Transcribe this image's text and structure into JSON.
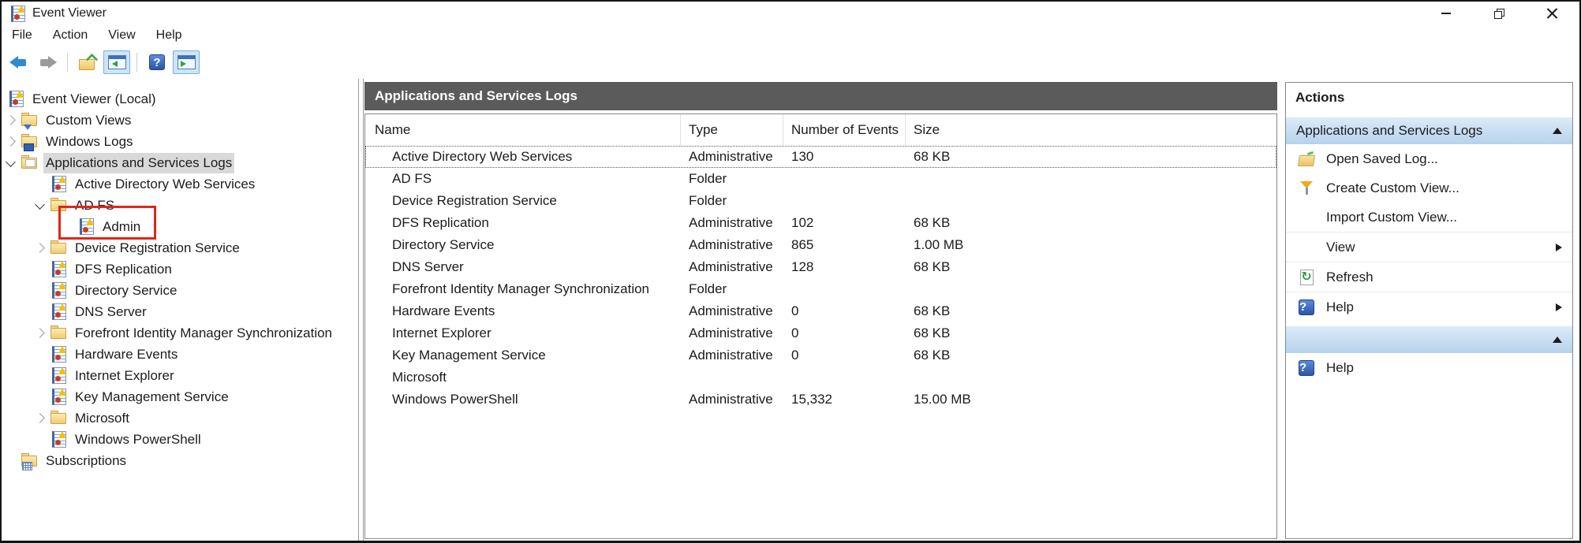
{
  "window": {
    "title": "Event Viewer"
  },
  "menu": {
    "items": [
      {
        "label": "File"
      },
      {
        "label": "Action"
      },
      {
        "label": "View"
      },
      {
        "label": "Help"
      }
    ]
  },
  "toolbar": {
    "buttons": [
      {
        "name": "back",
        "icon": "back"
      },
      {
        "name": "forward",
        "icon": "forward"
      },
      {
        "separator": true
      },
      {
        "name": "open-saved-log",
        "icon": "folder-arrow"
      },
      {
        "name": "show-hide-console-tree",
        "icon": "console-window",
        "toggled": true
      },
      {
        "separator": true
      },
      {
        "name": "help",
        "icon": "help"
      },
      {
        "name": "show-hide-action-pane",
        "icon": "action-pane-window",
        "toggled": true
      }
    ]
  },
  "tree": {
    "items": [
      {
        "label": "Event Viewer (Local)",
        "level": 0,
        "expander": null,
        "icon": "event-viewer"
      },
      {
        "label": "Custom Views",
        "level": 1,
        "expander": "collapsed",
        "icon": "folder-filter"
      },
      {
        "label": "Windows Logs",
        "level": 1,
        "expander": "collapsed",
        "icon": "folder-monitor"
      },
      {
        "label": "Applications and Services Logs",
        "level": 1,
        "expander": "expanded",
        "icon": "folder-open",
        "selected": true
      },
      {
        "label": "Active Directory Web Services",
        "level": 2,
        "expander": null,
        "icon": "log"
      },
      {
        "label": "AD FS",
        "level": 2,
        "expander": "expanded",
        "icon": "folder"
      },
      {
        "label": "Admin",
        "level": 3,
        "expander": null,
        "icon": "log",
        "annotated": true
      },
      {
        "label": "Device Registration Service",
        "level": 2,
        "expander": "collapsed",
        "icon": "folder"
      },
      {
        "label": "DFS Replication",
        "level": 2,
        "expander": null,
        "icon": "log"
      },
      {
        "label": "Directory Service",
        "level": 2,
        "expander": null,
        "icon": "log"
      },
      {
        "label": "DNS Server",
        "level": 2,
        "expander": null,
        "icon": "log"
      },
      {
        "label": "Forefront Identity Manager Synchronization",
        "level": 2,
        "expander": "collapsed",
        "icon": "folder"
      },
      {
        "label": "Hardware Events",
        "level": 2,
        "expander": null,
        "icon": "log"
      },
      {
        "label": "Internet Explorer",
        "level": 2,
        "expander": null,
        "icon": "log"
      },
      {
        "label": "Key Management Service",
        "level": 2,
        "expander": null,
        "icon": "log"
      },
      {
        "label": "Microsoft",
        "level": 2,
        "expander": "collapsed",
        "icon": "folder"
      },
      {
        "label": "Windows PowerShell",
        "level": 2,
        "expander": null,
        "icon": "log"
      },
      {
        "label": "Subscriptions",
        "level": 1,
        "expander": null,
        "icon": "folder-grid"
      }
    ]
  },
  "list": {
    "header": "Applications and Services Logs",
    "columns": [
      {
        "label": "Name"
      },
      {
        "label": "Type"
      },
      {
        "label": "Number of Events"
      },
      {
        "label": "Size"
      }
    ],
    "rows": [
      {
        "name": "Active Directory Web Services",
        "type": "Administrative",
        "events": "130",
        "size": "68 KB",
        "focused": true
      },
      {
        "name": "AD FS",
        "type": "Folder",
        "events": "",
        "size": ""
      },
      {
        "name": "Device Registration Service",
        "type": "Folder",
        "events": "",
        "size": ""
      },
      {
        "name": "DFS Replication",
        "type": "Administrative",
        "events": "102",
        "size": "68 KB"
      },
      {
        "name": "Directory Service",
        "type": "Administrative",
        "events": "865",
        "size": "1.00 MB"
      },
      {
        "name": "DNS Server",
        "type": "Administrative",
        "events": "128",
        "size": "68 KB"
      },
      {
        "name": "Forefront Identity Manager Synchronization",
        "type": "Folder",
        "events": "",
        "size": ""
      },
      {
        "name": "Hardware Events",
        "type": "Administrative",
        "events": "0",
        "size": "68 KB"
      },
      {
        "name": "Internet Explorer",
        "type": "Administrative",
        "events": "0",
        "size": "68 KB"
      },
      {
        "name": "Key Management Service",
        "type": "Administrative",
        "events": "0",
        "size": "68 KB"
      },
      {
        "name": "Microsoft",
        "type": "",
        "events": "",
        "size": ""
      },
      {
        "name": "Windows PowerShell",
        "type": "Administrative",
        "events": "15,332",
        "size": "15.00 MB"
      }
    ]
  },
  "actions": {
    "title": "Actions",
    "sections": [
      {
        "header": "Applications and Services Logs",
        "items": [
          {
            "label": "Open Saved Log...",
            "icon": "open-saved-log"
          },
          {
            "label": "Create Custom View...",
            "icon": "create-custom-view"
          },
          {
            "label": "Import Custom View...",
            "icon": null
          },
          {
            "label": "View",
            "icon": null,
            "submenu": true,
            "separator_before": true
          },
          {
            "label": "Refresh",
            "icon": "refresh",
            "separator_before": true
          },
          {
            "label": "Help",
            "icon": "help",
            "submenu": true,
            "separator_before": true
          }
        ]
      },
      {
        "header": "",
        "items": [
          {
            "label": "Help",
            "icon": "help"
          }
        ]
      }
    ]
  },
  "annotation": {
    "shape": "red-rectangle",
    "color": "#e0261a",
    "target": "Admin"
  }
}
